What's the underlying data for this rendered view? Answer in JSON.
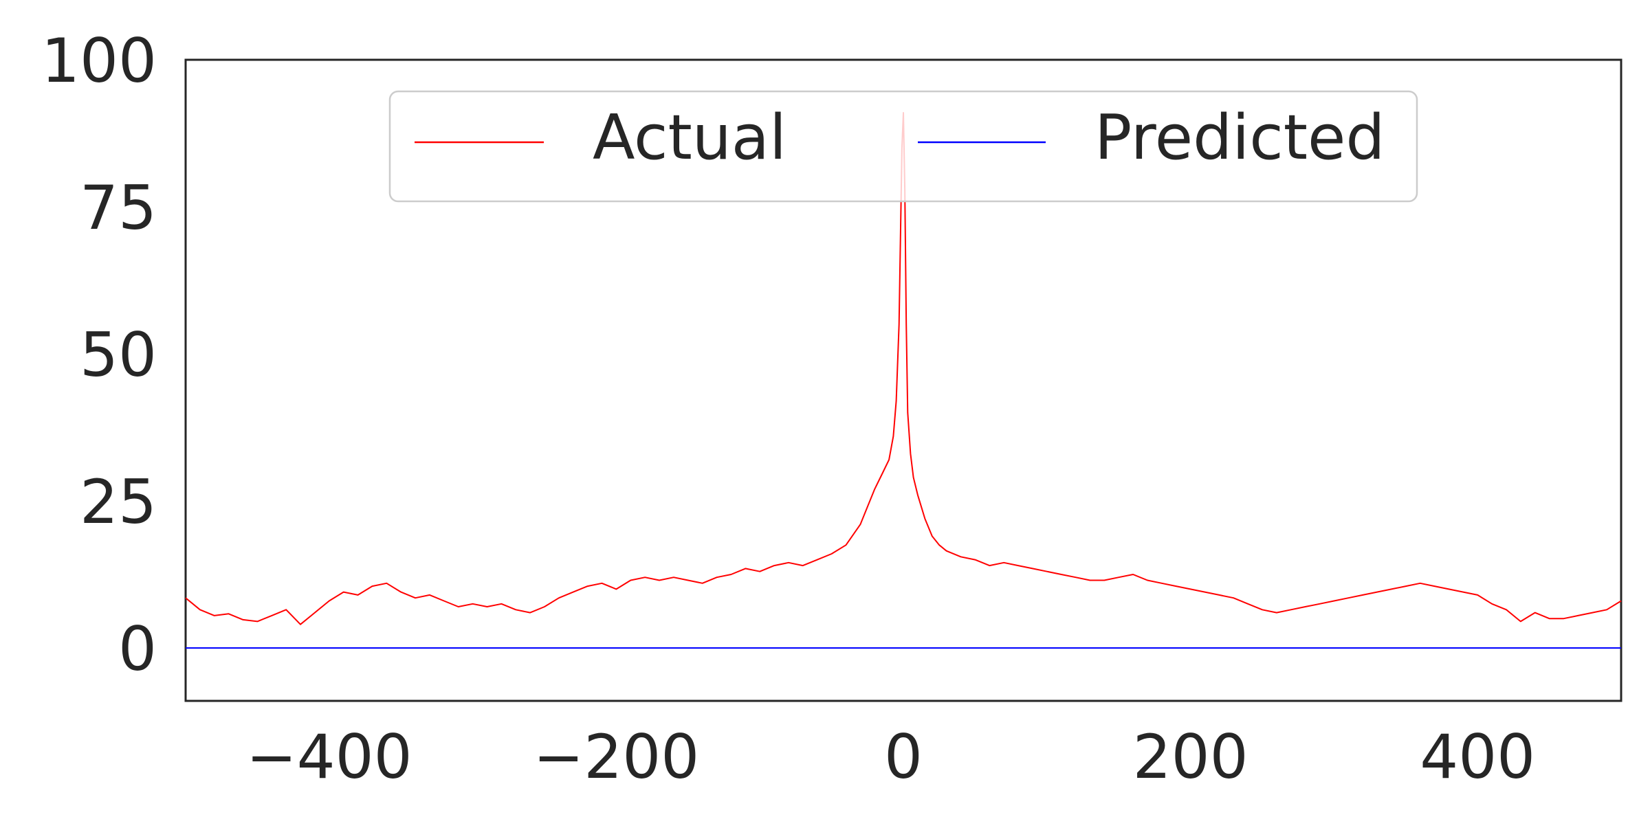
{
  "chart_data": {
    "type": "line",
    "title": "",
    "xlabel": "",
    "ylabel": "",
    "xlim": [
      -500,
      500
    ],
    "ylim": [
      -9,
      100
    ],
    "x_ticks": [
      -400,
      -200,
      0,
      200,
      400
    ],
    "y_ticks": [
      0,
      25,
      50,
      75,
      100
    ],
    "x_tick_labels": [
      "−400",
      "−200",
      "0",
      "200",
      "400"
    ],
    "y_tick_labels": [
      "0",
      "25",
      "50",
      "75",
      "100"
    ],
    "grid": false,
    "legend": {
      "placement": "upper-center",
      "columns": 2,
      "entries": [
        "Actual",
        "Predicted"
      ]
    },
    "series": [
      {
        "name": "Actual",
        "color": "#ff0000",
        "x": [
          -500,
          -490,
          -480,
          -470,
          -460,
          -450,
          -440,
          -430,
          -420,
          -410,
          -400,
          -390,
          -380,
          -370,
          -360,
          -350,
          -340,
          -330,
          -320,
          -310,
          -300,
          -290,
          -280,
          -270,
          -260,
          -250,
          -240,
          -230,
          -220,
          -210,
          -200,
          -190,
          -180,
          -170,
          -160,
          -150,
          -140,
          -130,
          -120,
          -110,
          -100,
          -90,
          -80,
          -70,
          -60,
          -50,
          -40,
          -30,
          -25,
          -20,
          -15,
          -10,
          -7,
          -5,
          -3,
          -2,
          -1,
          0,
          1,
          2,
          3,
          5,
          7,
          10,
          15,
          20,
          25,
          30,
          40,
          50,
          60,
          70,
          80,
          90,
          100,
          110,
          120,
          130,
          140,
          150,
          160,
          170,
          180,
          190,
          200,
          210,
          220,
          230,
          240,
          250,
          260,
          270,
          280,
          290,
          300,
          310,
          320,
          330,
          340,
          350,
          360,
          370,
          380,
          390,
          400,
          410,
          420,
          430,
          440,
          450,
          460,
          470,
          480,
          490,
          500
        ],
        "y": [
          8.5,
          6.5,
          5.5,
          5.8,
          4.8,
          4.5,
          5.5,
          6.5,
          4.0,
          6.0,
          8.0,
          9.5,
          9.0,
          10.5,
          11.0,
          9.5,
          8.5,
          9.0,
          8.0,
          7.0,
          7.5,
          7.0,
          7.5,
          6.5,
          6.0,
          7.0,
          8.5,
          9.5,
          10.5,
          11.0,
          10.0,
          11.5,
          12.0,
          11.5,
          12.0,
          11.5,
          11.0,
          12.0,
          12.5,
          13.5,
          13.0,
          14.0,
          14.5,
          14.0,
          15.0,
          16.0,
          17.5,
          21.0,
          24.0,
          27.0,
          29.5,
          32.0,
          36.0,
          42.0,
          55.0,
          70.0,
          85.0,
          91.0,
          78.0,
          55.0,
          40.0,
          33.0,
          29.0,
          26.0,
          22.0,
          19.0,
          17.5,
          16.5,
          15.5,
          15.0,
          14.0,
          14.5,
          14.0,
          13.5,
          13.0,
          12.5,
          12.0,
          11.5,
          11.5,
          12.0,
          12.5,
          11.5,
          11.0,
          10.5,
          10.0,
          9.5,
          9.0,
          8.5,
          7.5,
          6.5,
          6.0,
          6.5,
          7.0,
          7.5,
          8.0,
          8.5,
          9.0,
          9.5,
          10.0,
          10.5,
          11.0,
          10.5,
          10.0,
          9.5,
          9.0,
          7.5,
          6.5,
          4.5,
          6.0,
          5.0,
          5.0,
          5.5,
          6.0,
          6.5,
          8.0
        ]
      },
      {
        "name": "Predicted",
        "color": "#0000ff",
        "x": [
          -500,
          500
        ],
        "y": [
          0,
          0
        ]
      }
    ]
  }
}
